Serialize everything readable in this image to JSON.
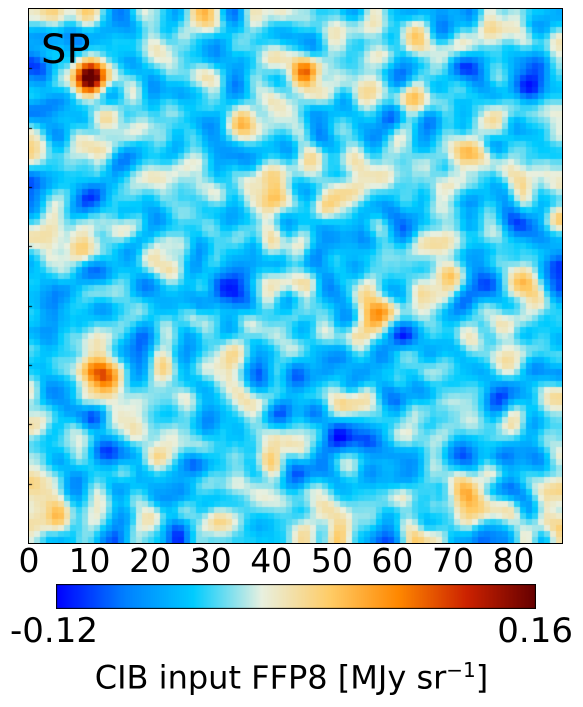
{
  "chart_data": {
    "type": "heatmap",
    "panel_label": "SP",
    "x_ticks": [
      "0",
      "10",
      "20",
      "30",
      "40",
      "50",
      "60",
      "70",
      "80"
    ],
    "x_tick_values": [
      0,
      10,
      20,
      30,
      40,
      50,
      60,
      70,
      80
    ],
    "xlim": [
      0,
      88
    ],
    "colorbar": {
      "min_label": "-0.12",
      "max_label": "0.16",
      "range": [
        -0.12,
        0.16
      ],
      "title_text": "CIB input FFP8 [MJy sr",
      "title_exponent": "−1",
      "title_close": "]",
      "colors": [
        "#0000ff",
        "#0080ff",
        "#00ccff",
        "#e8f0e0",
        "#ffcc66",
        "#ff8800",
        "#cc2200",
        "#660000"
      ]
    },
    "field": {
      "grid": [
        89,
        89
      ],
      "background_value": -0.03,
      "hotspots": [
        {
          "x": 10,
          "y": 11,
          "value": 0.16
        },
        {
          "x": 12,
          "y": 60,
          "value": 0.14
        },
        {
          "x": 40,
          "y": 74,
          "value": 0.11
        },
        {
          "x": 73,
          "y": 80,
          "value": 0.13
        },
        {
          "x": 45,
          "y": 9,
          "value": 0.09
        },
        {
          "x": 35,
          "y": 18,
          "value": 0.08
        },
        {
          "x": 3,
          "y": 83,
          "value": 0.07
        },
        {
          "x": 58,
          "y": 50,
          "value": 0.07
        }
      ],
      "coldspots": [
        {
          "x": 62,
          "y": 54,
          "value": -0.12
        },
        {
          "x": 10,
          "y": 30,
          "value": -0.09
        },
        {
          "x": 44,
          "y": 28,
          "value": -0.08
        },
        {
          "x": 80,
          "y": 64,
          "value": -0.08
        }
      ]
    }
  }
}
